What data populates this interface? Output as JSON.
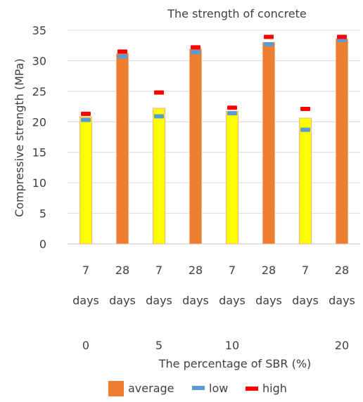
{
  "chart_data": {
    "type": "bar",
    "title": "The strength of concrete",
    "ylabel": "Compressive strength (MPa)",
    "xlabel": "The percentage of SBR (%)",
    "ylim": [
      0,
      35
    ],
    "yticks": [
      0,
      5,
      10,
      15,
      20,
      25,
      30,
      35
    ],
    "grid": true,
    "legend_position": "bottom",
    "categories": [
      {
        "age_top": "7",
        "age_bottom": "days",
        "sbr": "0",
        "average": 20.8,
        "low": 20.3,
        "high": 21.3,
        "color": "#FFFF00"
      },
      {
        "age_top": "28",
        "age_bottom": "days",
        "sbr": "",
        "average": 31.2,
        "low": 30.7,
        "high": 31.5,
        "color": "#ED7D31"
      },
      {
        "age_top": "7",
        "age_bottom": "days",
        "sbr": "5",
        "average": 22.2,
        "low": 20.9,
        "high": 24.8,
        "color": "#FFFF00"
      },
      {
        "age_top": "28",
        "age_bottom": "days",
        "sbr": "",
        "average": 31.9,
        "low": 31.4,
        "high": 32.2,
        "color": "#ED7D31"
      },
      {
        "age_top": "7",
        "age_bottom": "days",
        "sbr": "10",
        "average": 21.7,
        "low": 21.4,
        "high": 22.3,
        "color": "#FFFF00"
      },
      {
        "age_top": "28",
        "age_bottom": "days",
        "sbr": "",
        "average": 33.0,
        "low": 32.7,
        "high": 33.9,
        "color": "#ED7D31"
      },
      {
        "age_top": "7",
        "age_bottom": "days",
        "sbr": "",
        "average": 20.6,
        "low": 18.7,
        "high": 22.1,
        "color": "#FFFF00"
      },
      {
        "age_top": "28",
        "age_bottom": "days",
        "sbr": "20",
        "average": 33.6,
        "low": 33.4,
        "high": 33.9,
        "color": "#ED7D31"
      }
    ],
    "series": [
      {
        "name": "average",
        "color": "#ED7D31"
      },
      {
        "name": "low",
        "color": "#5B9BD5"
      },
      {
        "name": "high",
        "color": "#FF0000"
      }
    ]
  }
}
